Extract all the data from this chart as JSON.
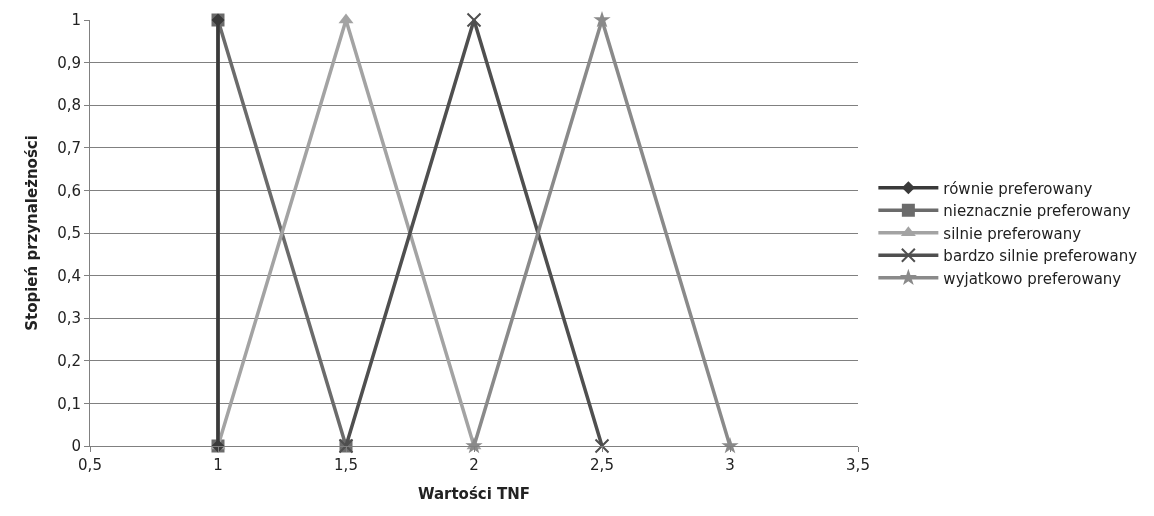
{
  "chart_data": {
    "type": "line",
    "xlabel": "Wartości TNF",
    "ylabel": "Stopień przynależności",
    "xlim": [
      0.5,
      3.5
    ],
    "xticks": [
      {
        "value": 0.5,
        "label": "0,5"
      },
      {
        "value": 1,
        "label": "1"
      },
      {
        "value": 1.5,
        "label": "1,5"
      },
      {
        "value": 2,
        "label": "2"
      },
      {
        "value": 2.5,
        "label": "2,5"
      },
      {
        "value": 3,
        "label": "3"
      },
      {
        "value": 3.5,
        "label": "3,5"
      }
    ],
    "ylim": [
      0,
      1
    ],
    "yticks": [
      {
        "value": 0,
        "label": "0"
      },
      {
        "value": 0.1,
        "label": "0,1"
      },
      {
        "value": 0.2,
        "label": "0,2"
      },
      {
        "value": 0.3,
        "label": "0,3"
      },
      {
        "value": 0.4,
        "label": "0,4"
      },
      {
        "value": 0.5,
        "label": "0,5"
      },
      {
        "value": 0.6,
        "label": "0,6"
      },
      {
        "value": 0.7,
        "label": "0,7"
      },
      {
        "value": 0.8,
        "label": "0,8"
      },
      {
        "value": 0.9,
        "label": "0,9"
      },
      {
        "value": 1,
        "label": "1"
      }
    ],
    "grid": "y",
    "legend": "right",
    "line_style": "solid",
    "series": [
      {
        "name": "nieznacznie preferowany",
        "color": "#6b6b6b",
        "marker": "square",
        "x": [
          1,
          1,
          1.5
        ],
        "values": [
          0,
          1,
          0
        ]
      },
      {
        "name": "silnie preferowany",
        "color": "#a3a3a3",
        "marker": "triangle",
        "x": [
          1,
          1.5,
          2
        ],
        "values": [
          0,
          1,
          0
        ]
      },
      {
        "name": "bardzo silnie preferowany",
        "color": "#4f4f4f",
        "marker": "cross",
        "x": [
          1.5,
          2,
          2.5
        ],
        "values": [
          0,
          1,
          0
        ]
      },
      {
        "name": "wyjatkowo preferowany",
        "color": "#8a8a8a",
        "marker": "star",
        "x": [
          2,
          2.5,
          3
        ],
        "values": [
          0,
          1,
          0
        ]
      },
      {
        "name": "równie preferowany",
        "color": "#3a3a3a",
        "marker": "diamond",
        "x": [
          1,
          1
        ],
        "values": [
          0,
          1
        ]
      }
    ]
  }
}
